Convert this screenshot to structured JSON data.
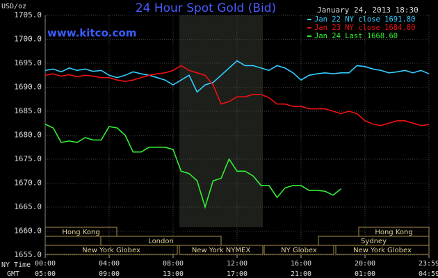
{
  "chart_data": {
    "type": "line",
    "title": "24 Hour Spot Gold (Bid)",
    "y_label": "USD/oz",
    "timestamp": "January 24, 2013 18:30",
    "source": "www.kitco.com",
    "x_label": "NY Time",
    "x2_label": "GMT",
    "x": [
      0,
      0.5,
      1,
      1.5,
      2,
      2.5,
      3,
      3.5,
      4,
      4.5,
      5,
      5.5,
      6,
      6.5,
      7,
      7.5,
      8,
      8.5,
      9,
      9.5,
      10,
      10.5,
      11,
      11.5,
      12,
      12.5,
      13,
      13.5,
      14,
      14.5,
      15,
      15.5,
      16,
      16.5,
      17,
      17.5,
      18,
      18.5,
      19,
      19.5,
      20,
      20.5,
      21,
      21.5,
      22,
      22.5,
      23,
      23.5,
      24
    ],
    "series": [
      {
        "name": "Jan 22 NY close 1691.80",
        "color": "#33ccff",
        "values": [
          1693.5,
          1693.8,
          1693.2,
          1694,
          1693.5,
          1693.8,
          1693.3,
          1693.5,
          1692.5,
          1692,
          1692.5,
          1693.2,
          1692.8,
          1692.5,
          1692,
          1691.5,
          1690.5,
          1691.5,
          1692.5,
          1689,
          1690.5,
          1691,
          1692.5,
          1694,
          1695.5,
          1694.5,
          1694.5,
          1694,
          1693.5,
          1694.5,
          1694,
          1693,
          1691.5,
          1692.5,
          1692.8,
          1693,
          1692.8,
          1693,
          1693,
          1694.5,
          1694.3,
          1693.8,
          1693.5,
          1693,
          1693.2,
          1693.5,
          1693,
          1693.5,
          1692.8
        ]
      },
      {
        "name": "Jan 23 NY close 1684.80",
        "color": "#ee1111",
        "values": [
          1692.5,
          1692.8,
          1692.3,
          1692.6,
          1692.2,
          1692.5,
          1692.3,
          1692,
          1692,
          1691.5,
          1691.2,
          1691.5,
          1692,
          1692.5,
          1692.8,
          1693,
          1693.5,
          1694.5,
          1693.5,
          1693,
          1692.5,
          1690.5,
          1686.5,
          1687,
          1688,
          1688,
          1688.5,
          1688.5,
          1687.8,
          1686.5,
          1686.5,
          1686,
          1686,
          1685.5,
          1685.5,
          1685.5,
          1685,
          1684.5,
          1685,
          1684.5,
          1683,
          1682.3,
          1682,
          1682.5,
          1683,
          1683,
          1682.5,
          1682,
          1682.2
        ]
      },
      {
        "name": "Jan 24 Last 1668.60",
        "color": "#33ee33",
        "values": [
          1682.3,
          1681.5,
          1678.5,
          1678.8,
          1678.5,
          1679.5,
          1679,
          1679,
          1681.8,
          1681.5,
          1680,
          1676.5,
          1676.5,
          1677.5,
          1677.5,
          1677.5,
          1677,
          1672.5,
          1672,
          1670.5,
          1665,
          1670.5,
          1671,
          1675,
          1672.5,
          1672.5,
          1671.5,
          1669.5,
          1669.5,
          1667,
          1669,
          1669.5,
          1669.5,
          1668.5,
          1668.5,
          1668.3,
          1667.5,
          1668.8,
          null,
          null,
          null,
          null,
          null,
          null,
          null,
          null,
          null,
          null,
          null
        ]
      }
    ],
    "xlim": [
      0,
      24
    ],
    "xticks": [
      {
        "value": 0,
        "label": "00:00"
      },
      {
        "value": 4,
        "label": "04:00"
      },
      {
        "value": 8,
        "label": "08:00"
      },
      {
        "value": 12,
        "label": "12:00"
      },
      {
        "value": 16,
        "label": "16:00"
      },
      {
        "value": 20,
        "label": "20:00"
      },
      {
        "value": 24,
        "label": "23:59"
      }
    ],
    "x2ticks": [
      {
        "value": 0,
        "label": "05:00"
      },
      {
        "value": 4,
        "label": "09:00"
      },
      {
        "value": 8,
        "label": "13:00"
      },
      {
        "value": 12,
        "label": "17:00"
      },
      {
        "value": 16,
        "label": "21:00"
      },
      {
        "value": 20,
        "label": "01:00"
      },
      {
        "value": 24,
        "label": "04:59"
      }
    ],
    "ylim": [
      1655,
      1705
    ],
    "yticks": [
      {
        "value": 1655,
        "label": "1655.0"
      },
      {
        "value": 1660,
        "label": "1660.0"
      },
      {
        "value": 1665,
        "label": "1665.0"
      },
      {
        "value": 1670,
        "label": "1670.0"
      },
      {
        "value": 1675,
        "label": "1675.0"
      },
      {
        "value": 1680,
        "label": "1680.0"
      },
      {
        "value": 1685,
        "label": "1685.0"
      },
      {
        "value": 1690,
        "label": "1690.0"
      },
      {
        "value": 1695,
        "label": "1695.0"
      },
      {
        "value": 1700,
        "label": "1700.0"
      },
      {
        "value": 1705,
        "label": "1705.0"
      }
    ],
    "grid": true,
    "sessions": [
      "Hong Kong",
      "Hong Kong",
      "London",
      "Sydney",
      "New York Globex",
      "New York NYMEX",
      "NY Globex",
      "New York Globex"
    ]
  }
}
